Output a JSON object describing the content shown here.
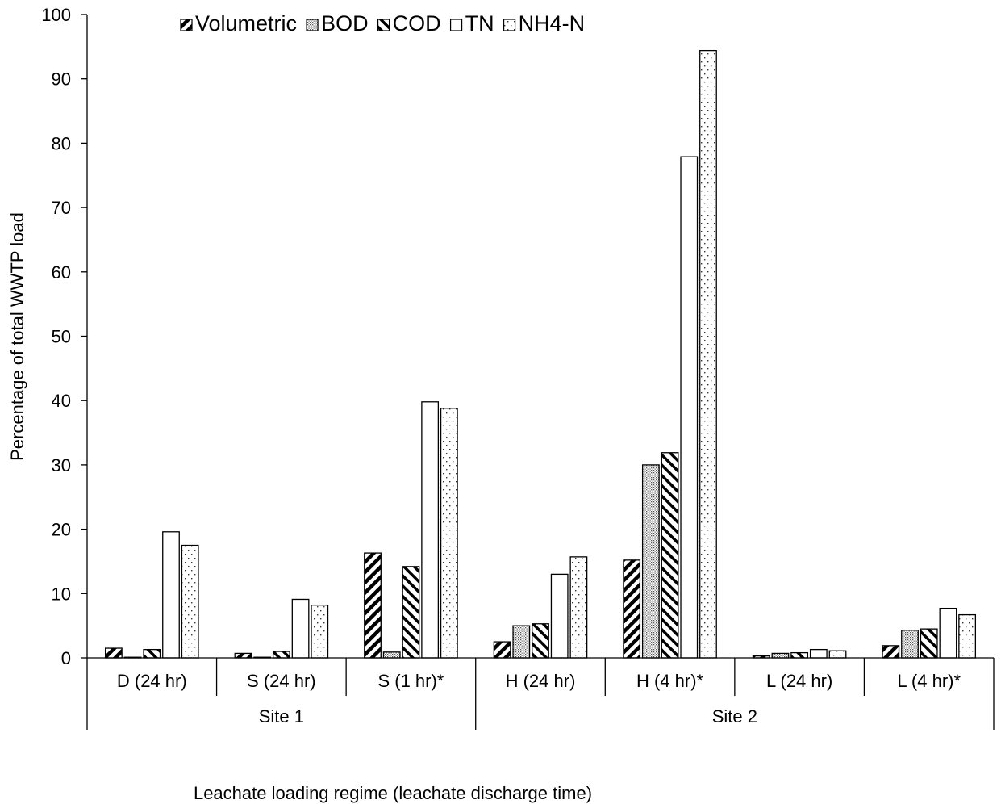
{
  "chart_data": {
    "type": "bar",
    "xlabel": "Leachate loading regime (leachate discharge time)",
    "ylabel": "Percentage of total WWTP load",
    "ylim": [
      0,
      100
    ],
    "y_ticks": [
      0,
      10,
      20,
      30,
      40,
      50,
      60,
      70,
      80,
      90,
      100
    ],
    "grid": false,
    "legend_position": "top",
    "categories": [
      "D (24 hr)",
      "S (24 hr)",
      "S (1 hr)*",
      "H (24 hr)",
      "H (4 hr)*",
      "L (24 hr)",
      "L (4 hr)*"
    ],
    "groups": [
      {
        "label": "Site 1",
        "categories": [
          "D (24 hr)",
          "S (24 hr)",
          "S (1 hr)*"
        ]
      },
      {
        "label": "Site 2",
        "categories": [
          "H (24 hr)",
          "H (4 hr)*",
          "L (24 hr)",
          "L (4 hr)*"
        ]
      }
    ],
    "series": [
      {
        "name": "Volumetric",
        "pattern": "diagonal-thick",
        "values": [
          1.5,
          0.7,
          16.3,
          2.5,
          15.2,
          0.3,
          1.9
        ]
      },
      {
        "name": "BOD",
        "pattern": "dots-dense",
        "values": [
          0.1,
          0.1,
          0.9,
          5.0,
          30.0,
          0.7,
          4.3
        ]
      },
      {
        "name": "COD",
        "pattern": "diagonal-thin",
        "values": [
          1.3,
          1.0,
          14.2,
          5.3,
          31.9,
          0.8,
          4.5
        ]
      },
      {
        "name": "TN",
        "pattern": "white",
        "values": [
          19.6,
          9.1,
          39.8,
          13.0,
          77.9,
          1.3,
          7.7
        ]
      },
      {
        "name": "NH4-N",
        "pattern": "dots-sparse",
        "values": [
          17.5,
          8.2,
          38.8,
          15.7,
          94.4,
          1.1,
          6.7
        ]
      }
    ]
  }
}
